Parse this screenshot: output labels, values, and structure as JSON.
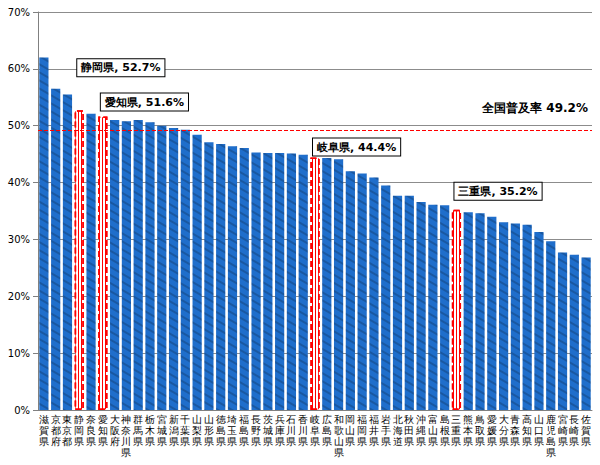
{
  "chart_data": {
    "type": "bar",
    "categories": [
      "滋賀県",
      "京都府",
      "東京都",
      "静岡県",
      "奈良県",
      "愛知県",
      "大阪府",
      "神奈川県",
      "群馬県",
      "栃木県",
      "宮城県",
      "新潟県",
      "千葉県",
      "山梨県",
      "山形県",
      "徳島県",
      "埼玉県",
      "福島県",
      "長野県",
      "茨城県",
      "兵庫県",
      "石川県",
      "香川県",
      "岐阜県",
      "広島県",
      "和歌山県",
      "岡山県",
      "福岡県",
      "福井県",
      "岩手県",
      "北海道",
      "秋田県",
      "沖縄県",
      "富山県",
      "島根県",
      "三重県",
      "熊本県",
      "鳥取県",
      "愛媛県",
      "大分県",
      "青森県",
      "高知県",
      "山口県",
      "鹿児島県",
      "宮崎県",
      "長崎県",
      "佐賀県"
    ],
    "values": [
      62.0,
      56.5,
      55.5,
      52.7,
      52.1,
      51.6,
      51.0,
      50.8,
      51.0,
      50.6,
      50.0,
      49.6,
      49.3,
      48.4,
      47.1,
      46.8,
      46.4,
      46.1,
      45.3,
      45.2,
      45.2,
      45.1,
      44.9,
      44.4,
      44.3,
      44.1,
      42.0,
      41.6,
      40.9,
      39.5,
      37.7,
      37.7,
      36.6,
      36.1,
      36.0,
      35.2,
      34.8,
      34.6,
      34.0,
      33.0,
      32.8,
      32.6,
      31.3,
      29.7,
      27.7,
      27.3,
      26.8
    ],
    "color": "#1f6ecb",
    "colors": [
      "#1f6ecb",
      "#1f6ecb",
      "#1f6ecb",
      "#ff0000",
      "#1f6ecb",
      "#ff0000",
      "#1f6ecb",
      "#1f6ecb",
      "#1f6ecb",
      "#1f6ecb",
      "#1f6ecb",
      "#1f6ecb",
      "#1f6ecb",
      "#1f6ecb",
      "#1f6ecb",
      "#1f6ecb",
      "#1f6ecb",
      "#1f6ecb",
      "#1f6ecb",
      "#1f6ecb",
      "#1f6ecb",
      "#1f6ecb",
      "#1f6ecb",
      "#ff0000",
      "#1f6ecb",
      "#1f6ecb",
      "#1f6ecb",
      "#1f6ecb",
      "#1f6ecb",
      "#1f6ecb",
      "#1f6ecb",
      "#1f6ecb",
      "#1f6ecb",
      "#1f6ecb",
      "#1f6ecb",
      "#ff0000",
      "#1f6ecb",
      "#1f6ecb",
      "#1f6ecb",
      "#1f6ecb",
      "#1f6ecb",
      "#1f6ecb",
      "#1f6ecb",
      "#1f6ecb",
      "#1f6ecb",
      "#1f6ecb",
      "#1f6ecb"
    ],
    "annotations": [
      {
        "category": "静岡県",
        "text": "静岡県, 52.7%"
      },
      {
        "category": "愛知県",
        "text": "愛知県, 51.6%"
      },
      {
        "category": "岐阜県",
        "text": "岐阜県, 44.4%"
      },
      {
        "category": "三重県",
        "text": "三重県, 35.2%"
      }
    ],
    "reference_line": {
      "value": 49.2,
      "label": "全国普及率 49.2%",
      "color": "#ff0000",
      "line_style": "dashed"
    },
    "ylim": [
      0,
      70
    ],
    "yticks": [
      {
        "value": 0,
        "label": "0%"
      },
      {
        "value": 10,
        "label": "10%"
      },
      {
        "value": 20,
        "label": "20%"
      },
      {
        "value": 30,
        "label": "30%"
      },
      {
        "value": 40,
        "label": "40%"
      },
      {
        "value": 50,
        "label": "50%"
      },
      {
        "value": 60,
        "label": "60%"
      },
      {
        "value": 70,
        "label": "70%"
      }
    ],
    "grid": true
  }
}
